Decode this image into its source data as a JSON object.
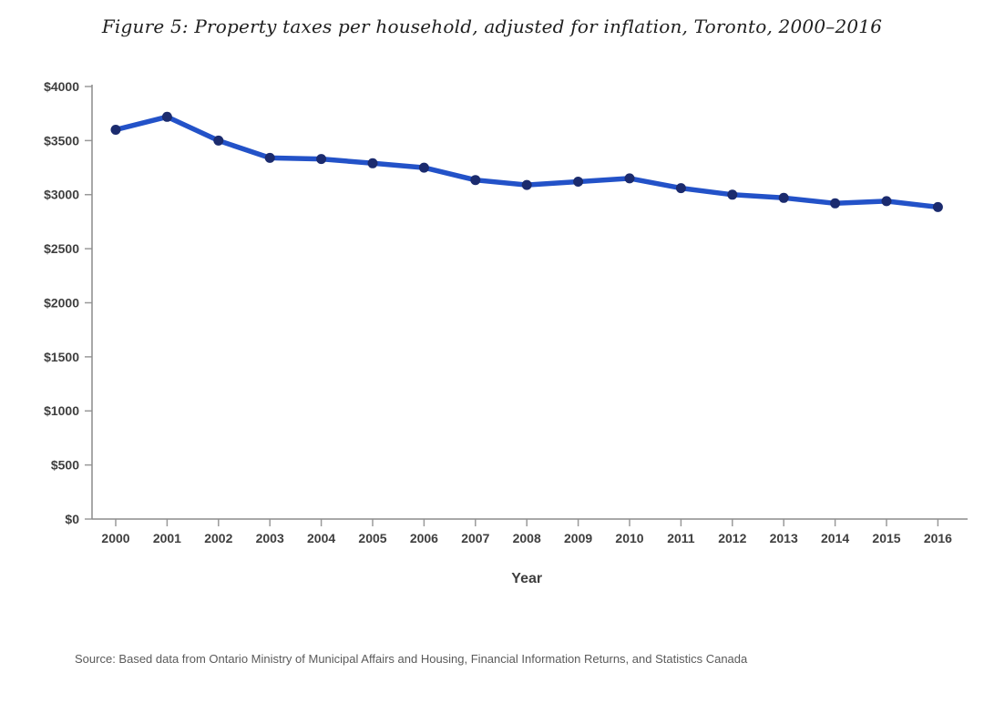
{
  "figure": {
    "title": "Figure 5: Property taxes per household, adjusted for inflation, Toronto, 2000–2016",
    "source": "Source: Based data from Ontario Ministry of Municipal Affairs and Housing, Financial Information Returns, and Statistics Canada"
  },
  "chart_data": {
    "type": "line",
    "title": "Figure 5: Property taxes per household, adjusted for inflation, Toronto, 2000–2016",
    "xlabel": "Year",
    "ylabel": "",
    "x": [
      2000,
      2001,
      2002,
      2003,
      2004,
      2005,
      2006,
      2007,
      2008,
      2009,
      2010,
      2011,
      2012,
      2013,
      2014,
      2015,
      2016
    ],
    "series": [
      {
        "name": "Property taxes per household (inflation-adjusted $)",
        "values": [
          3600,
          3720,
          3500,
          3340,
          3330,
          3290,
          3250,
          3135,
          3090,
          3120,
          3150,
          3060,
          3000,
          2970,
          2920,
          2940,
          2885
        ]
      }
    ],
    "ylim": [
      0,
      4000
    ],
    "ytick_step": 500,
    "ytick_prefix": "$",
    "grid": false,
    "legend_position": "none",
    "colors": {
      "line": "#2352c8",
      "marker": "#1b2b6e",
      "axis": "#8c8c8c",
      "tick": "#9a9a9a",
      "tick_label": "#3f3f3f",
      "axis_label": "#3f3f3f"
    }
  }
}
